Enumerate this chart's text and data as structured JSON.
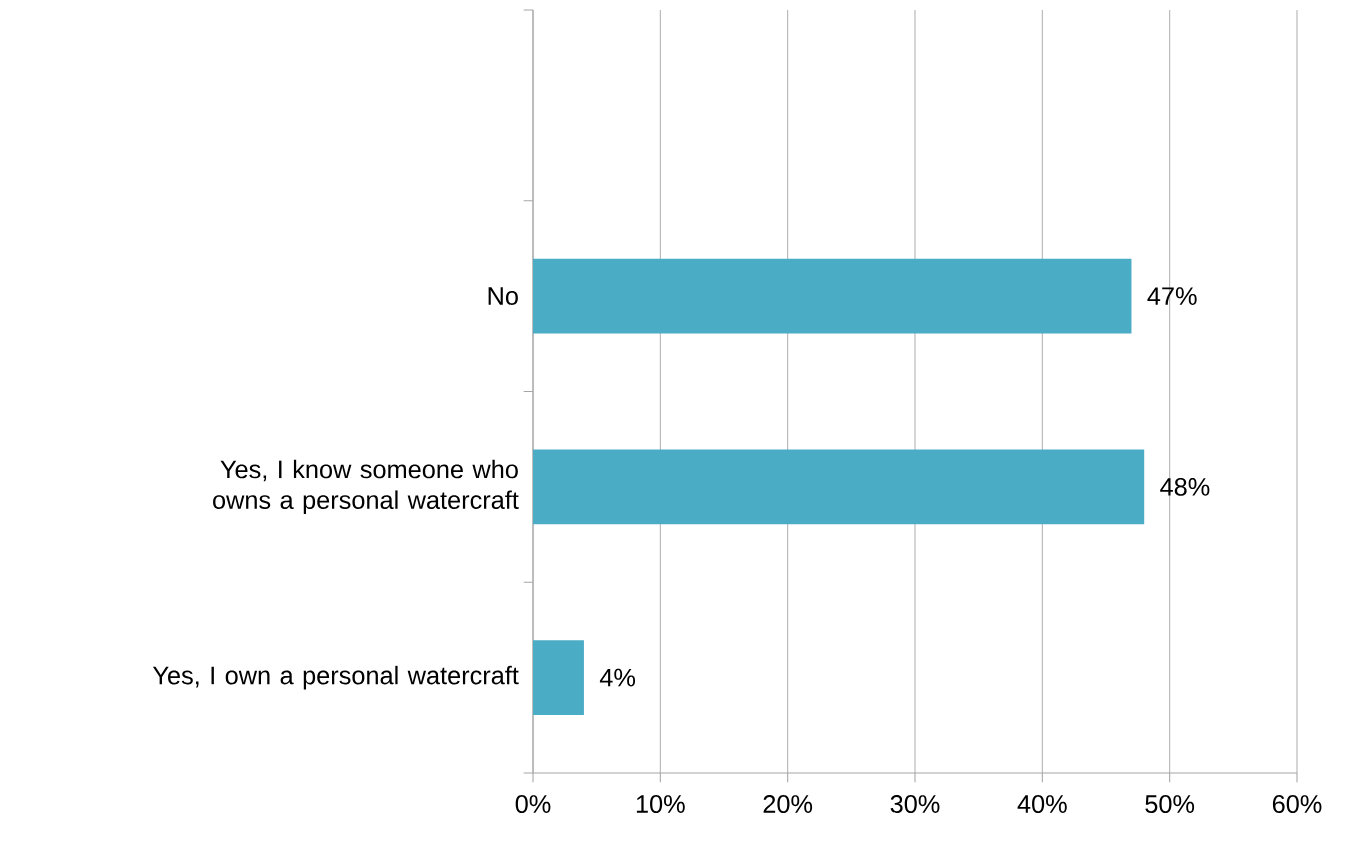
{
  "chart_data": {
    "type": "bar",
    "orientation": "horizontal",
    "categories": [
      null,
      "No",
      "Yes, I know someone who owns a personal watercraft",
      "Yes, I own a personal watercraft"
    ],
    "values": [
      null,
      47,
      48,
      4
    ],
    "value_labels": [
      null,
      "47%",
      "48%",
      "4%"
    ],
    "color": "#4bacc6",
    "xlim": [
      0,
      60
    ],
    "xticks": [
      {
        "value": 0,
        "label": "0%"
      },
      {
        "value": 10,
        "label": "10%"
      },
      {
        "value": 20,
        "label": "20%"
      },
      {
        "value": 30,
        "label": "30%"
      },
      {
        "value": 40,
        "label": "40%"
      },
      {
        "value": 50,
        "label": "50%"
      },
      {
        "value": 60,
        "label": "60%"
      }
    ],
    "grid": "x"
  }
}
